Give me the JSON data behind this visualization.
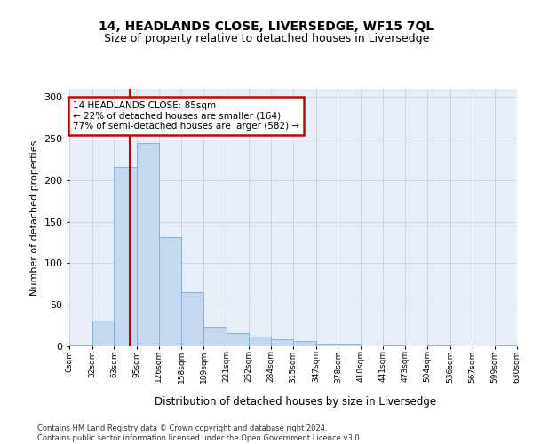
{
  "title": "14, HEADLANDS CLOSE, LIVERSEDGE, WF15 7QL",
  "subtitle": "Size of property relative to detached houses in Liversedge",
  "xlabel": "Distribution of detached houses by size in Liversedge",
  "ylabel": "Number of detached properties",
  "bar_color": "#c5d8f0",
  "bar_edge_color": "#7aaad4",
  "grid_color": "#c8d4e8",
  "vline_color": "#cc0000",
  "vline_value": 85,
  "annotation_text": "14 HEADLANDS CLOSE: 85sqm\n← 22% of detached houses are smaller (164)\n77% of semi-detached houses are larger (582) →",
  "annotation_box_color": "#ffffff",
  "annotation_box_edge": "#cc0000",
  "footer_text": "Contains HM Land Registry data © Crown copyright and database right 2024.\nContains public sector information licensed under the Open Government Licence v3.0.",
  "bin_edges": [
    0,
    32,
    63,
    95,
    126,
    158,
    189,
    221,
    252,
    284,
    315,
    347,
    378,
    410,
    441,
    473,
    504,
    536,
    567,
    599,
    630
  ],
  "bin_labels": [
    "0sqm",
    "32sqm",
    "63sqm",
    "95sqm",
    "126sqm",
    "158sqm",
    "189sqm",
    "221sqm",
    "252sqm",
    "284sqm",
    "315sqm",
    "347sqm",
    "378sqm",
    "410sqm",
    "441sqm",
    "473sqm",
    "504sqm",
    "536sqm",
    "567sqm",
    "599sqm",
    "630sqm"
  ],
  "counts": [
    1,
    31,
    216,
    245,
    132,
    65,
    24,
    16,
    12,
    9,
    6,
    3,
    3,
    0,
    1,
    0,
    1,
    0,
    0,
    1
  ],
  "ylim": [
    0,
    310
  ],
  "yticks": [
    0,
    50,
    100,
    150,
    200,
    250,
    300
  ],
  "background_color": "#e8eef8",
  "title_fontsize": 10,
  "subtitle_fontsize": 9,
  "title_fontweight": "bold"
}
